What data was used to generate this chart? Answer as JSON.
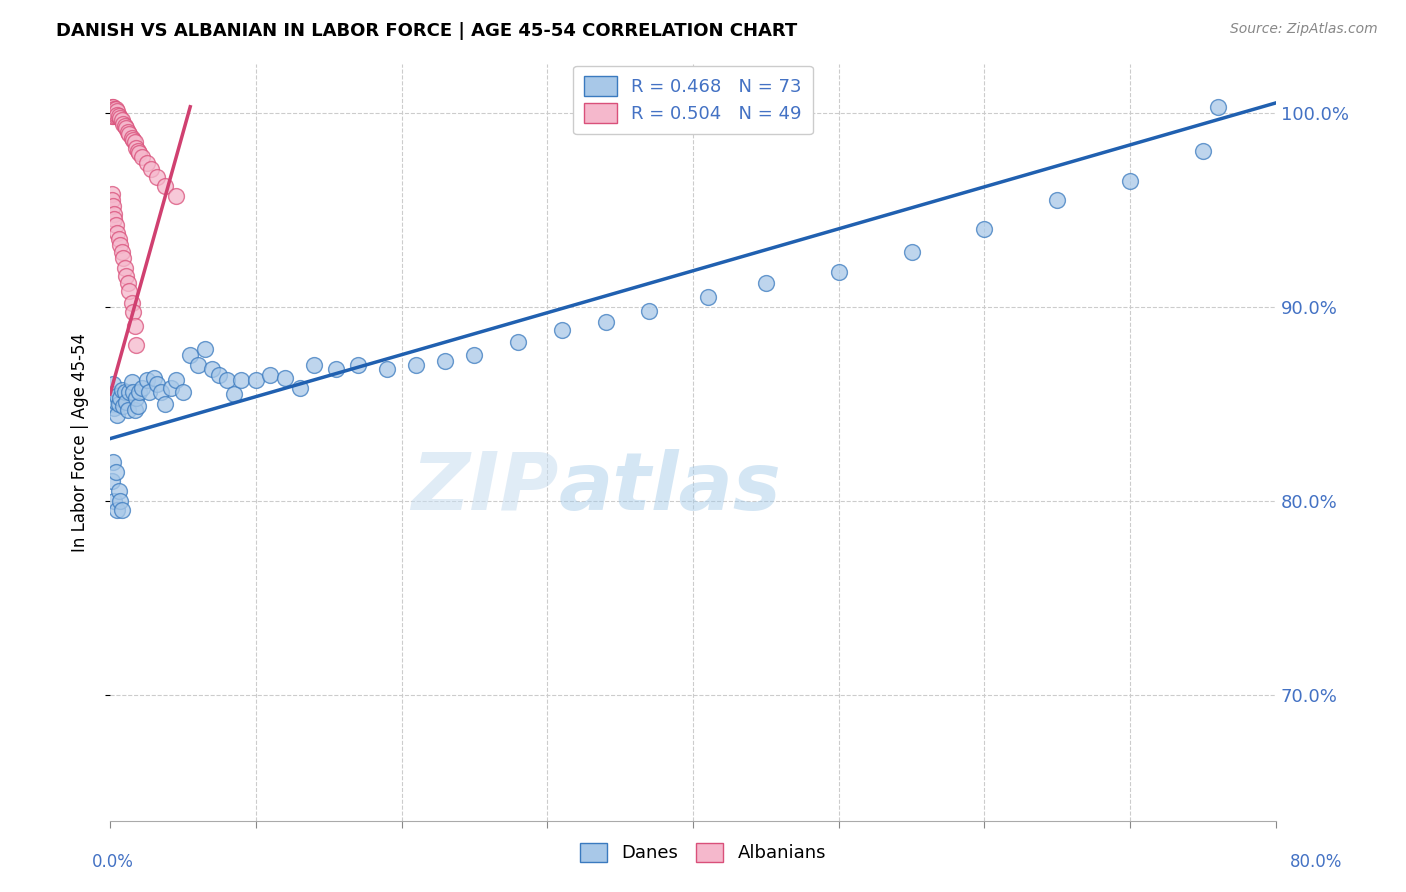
{
  "title": "DANISH VS ALBANIAN IN LABOR FORCE | AGE 45-54 CORRELATION CHART",
  "source": "Source: ZipAtlas.com",
  "ylabel": "In Labor Force | Age 45-54",
  "ytick_values": [
    0.7,
    0.8,
    0.9,
    1.0
  ],
  "ytick_labels": [
    "70.0%",
    "80.0%",
    "90.0%",
    "100.0%"
  ],
  "xmin": 0.0,
  "xmax": 0.8,
  "ymin": 0.635,
  "ymax": 1.025,
  "legend_blue_text": "R = 0.468   N = 73",
  "legend_pink_text": "R = 0.504   N = 49",
  "blue_fill": "#a8c8e8",
  "blue_edge": "#3a7abf",
  "pink_fill": "#f5b8cc",
  "pink_edge": "#d9507a",
  "blue_line": "#2060b0",
  "pink_line": "#d04070",
  "watermark": "ZIPatlas",
  "danes_label": "Danes",
  "albanians_label": "Albanians",
  "danes_x": [
    0.001,
    0.001,
    0.002,
    0.002,
    0.003,
    0.003,
    0.004,
    0.005,
    0.005,
    0.006,
    0.007,
    0.008,
    0.009,
    0.01,
    0.011,
    0.012,
    0.013,
    0.015,
    0.016,
    0.017,
    0.018,
    0.019,
    0.02,
    0.022,
    0.025,
    0.027,
    0.03,
    0.032,
    0.035,
    0.038,
    0.042,
    0.045,
    0.05,
    0.055,
    0.06,
    0.065,
    0.07,
    0.075,
    0.08,
    0.085,
    0.09,
    0.1,
    0.11,
    0.12,
    0.13,
    0.14,
    0.155,
    0.17,
    0.19,
    0.21,
    0.23,
    0.25,
    0.28,
    0.31,
    0.34,
    0.37,
    0.41,
    0.45,
    0.5,
    0.55,
    0.6,
    0.65,
    0.7,
    0.75,
    0.76,
    0.001,
    0.002,
    0.003,
    0.004,
    0.005,
    0.006,
    0.007,
    0.008
  ],
  "danes_y": [
    0.855,
    0.855,
    0.86,
    0.85,
    0.852,
    0.848,
    0.851,
    0.854,
    0.844,
    0.85,
    0.853,
    0.857,
    0.849,
    0.856,
    0.851,
    0.847,
    0.856,
    0.861,
    0.856,
    0.847,
    0.853,
    0.849,
    0.856,
    0.858,
    0.862,
    0.856,
    0.863,
    0.86,
    0.856,
    0.85,
    0.858,
    0.862,
    0.856,
    0.875,
    0.87,
    0.878,
    0.868,
    0.865,
    0.862,
    0.855,
    0.862,
    0.862,
    0.865,
    0.863,
    0.858,
    0.87,
    0.868,
    0.87,
    0.868,
    0.87,
    0.872,
    0.875,
    0.882,
    0.888,
    0.892,
    0.898,
    0.905,
    0.912,
    0.918,
    0.928,
    0.94,
    0.955,
    0.965,
    0.98,
    1.003,
    0.81,
    0.82,
    0.8,
    0.815,
    0.795,
    0.805,
    0.8,
    0.795
  ],
  "albanians_x": [
    0.001,
    0.001,
    0.002,
    0.002,
    0.003,
    0.003,
    0.004,
    0.004,
    0.005,
    0.005,
    0.006,
    0.007,
    0.008,
    0.009,
    0.01,
    0.011,
    0.012,
    0.013,
    0.015,
    0.016,
    0.017,
    0.018,
    0.019,
    0.02,
    0.022,
    0.025,
    0.028,
    0.032,
    0.038,
    0.045,
    0.001,
    0.001,
    0.002,
    0.003,
    0.003,
    0.004,
    0.005,
    0.006,
    0.007,
    0.008,
    0.009,
    0.01,
    0.011,
    0.012,
    0.013,
    0.015,
    0.016,
    0.017,
    0.018
  ],
  "albanians_y": [
    1.003,
    0.998,
    1.003,
    0.998,
    1.002,
    1.0,
    1.002,
    0.998,
    1.001,
    0.999,
    0.998,
    0.997,
    0.996,
    0.994,
    0.993,
    0.992,
    0.99,
    0.989,
    0.987,
    0.986,
    0.985,
    0.982,
    0.98,
    0.979,
    0.977,
    0.974,
    0.971,
    0.967,
    0.962,
    0.957,
    0.958,
    0.955,
    0.952,
    0.948,
    0.945,
    0.942,
    0.938,
    0.935,
    0.932,
    0.928,
    0.925,
    0.92,
    0.916,
    0.912,
    0.908,
    0.902,
    0.897,
    0.89,
    0.88
  ],
  "blue_trend_x": [
    0.0,
    0.8
  ],
  "blue_trend_y": [
    0.832,
    1.005
  ],
  "pink_trend_x": [
    0.0,
    0.055
  ],
  "pink_trend_y": [
    0.855,
    1.003
  ]
}
